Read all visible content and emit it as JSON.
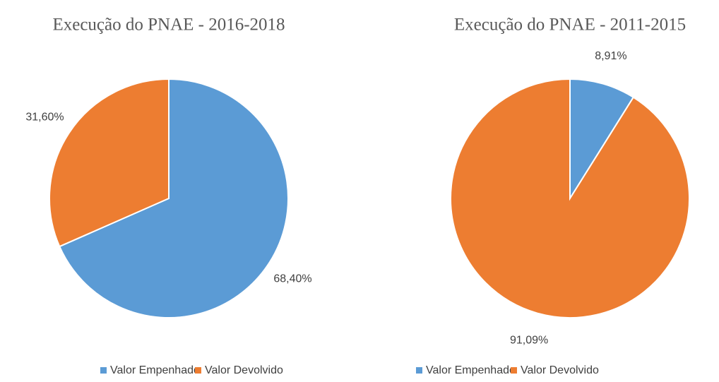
{
  "chart_data": [
    {
      "type": "pie",
      "title": "Execução do PNAE - 2016-2018",
      "categories": [
        "Valor Empenhado",
        "Valor Devolvido"
      ],
      "values": [
        68.4,
        31.6
      ],
      "value_labels": [
        "68,40%",
        "31,60%"
      ],
      "colors": [
        "#5b9bd5",
        "#ed7d31"
      ]
    },
    {
      "type": "pie",
      "title": "Execução do PNAE - 2011-2015",
      "categories": [
        "Valor Empenhado",
        "Valor Devolvido"
      ],
      "values": [
        8.91,
        91.09
      ],
      "value_labels": [
        "8,91%",
        "91,09%"
      ],
      "colors": [
        "#5b9bd5",
        "#ed7d31"
      ]
    }
  ]
}
